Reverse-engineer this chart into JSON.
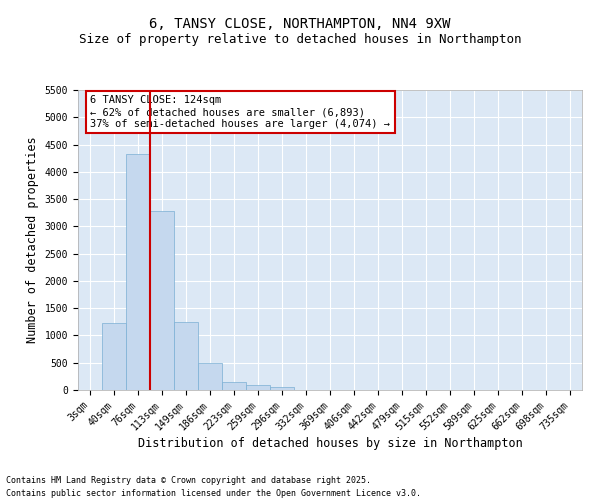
{
  "title_line1": "6, TANSY CLOSE, NORTHAMPTON, NN4 9XW",
  "title_line2": "Size of property relative to detached houses in Northampton",
  "xlabel": "Distribution of detached houses by size in Northampton",
  "ylabel": "Number of detached properties",
  "categories": [
    "3sqm",
    "40sqm",
    "76sqm",
    "113sqm",
    "149sqm",
    "186sqm",
    "223sqm",
    "259sqm",
    "296sqm",
    "332sqm",
    "369sqm",
    "406sqm",
    "442sqm",
    "479sqm",
    "515sqm",
    "552sqm",
    "589sqm",
    "625sqm",
    "662sqm",
    "698sqm",
    "735sqm"
  ],
  "values": [
    0,
    1220,
    4330,
    3280,
    1250,
    490,
    150,
    100,
    60,
    0,
    0,
    0,
    0,
    0,
    0,
    0,
    0,
    0,
    0,
    0,
    0
  ],
  "bar_color": "#c5d8ee",
  "bar_edge_color": "#7aafd4",
  "vline_x": 2.5,
  "vline_color": "#cc0000",
  "ylim": [
    0,
    5500
  ],
  "yticks": [
    0,
    500,
    1000,
    1500,
    2000,
    2500,
    3000,
    3500,
    4000,
    4500,
    5000,
    5500
  ],
  "annotation_text": "6 TANSY CLOSE: 124sqm\n← 62% of detached houses are smaller (6,893)\n37% of semi-detached houses are larger (4,074) →",
  "annotation_box_edgecolor": "#cc0000",
  "plot_bg_color": "#dce8f5",
  "grid_color": "#ffffff",
  "footer_line1": "Contains HM Land Registry data © Crown copyright and database right 2025.",
  "footer_line2": "Contains public sector information licensed under the Open Government Licence v3.0.",
  "title_fontsize": 10,
  "subtitle_fontsize": 9,
  "tick_fontsize": 7,
  "label_fontsize": 8.5,
  "annotation_fontsize": 7.5,
  "footer_fontsize": 6
}
